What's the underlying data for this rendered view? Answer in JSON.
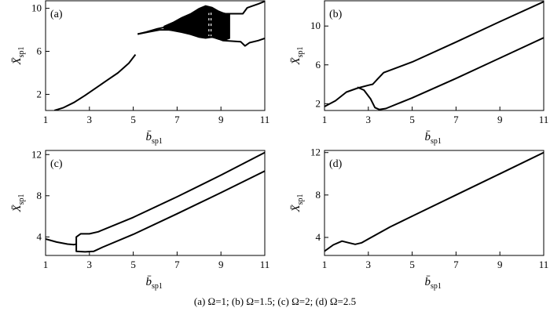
{
  "caption": "(a) Ω=1; (b) Ω=1.5; (c) Ω=2; (d) Ω=2.5",
  "chart_data": [
    {
      "type": "line",
      "panel_label": "(a)",
      "xlabel": "b̄sp1",
      "ylabel": "X̄sp1",
      "xlim": [
        1,
        11
      ],
      "ylim": [
        0.5,
        10.7
      ],
      "xticks": [
        1,
        3,
        5,
        7,
        9,
        11
      ],
      "yticks": [
        2,
        6,
        10
      ],
      "series": [
        {
          "x": [
            1.4,
            1.8,
            2.3,
            2.8,
            3.3,
            3.8,
            4.3,
            4.8,
            5.1
          ],
          "y": [
            0.5,
            0.75,
            1.25,
            1.9,
            2.6,
            3.3,
            4.0,
            4.9,
            5.7
          ]
        },
        {
          "x": [
            5.2,
            5.6,
            6.1,
            6.6,
            7.1,
            7.6,
            8.1,
            8.6,
            9.2,
            9.6,
            10.0,
            10.2,
            10.4,
            10.7,
            11.0
          ],
          "y": [
            7.6,
            7.8,
            8.1,
            8.3,
            8.55,
            8.8,
            9.3,
            9.8,
            9.5,
            9.5,
            9.5,
            10.05,
            10.2,
            10.4,
            10.65
          ]
        },
        {
          "x": [
            5.2,
            5.7,
            6.2,
            6.7,
            7.2,
            7.7,
            8.2,
            8.7,
            9.1,
            9.5,
            9.9,
            10.1,
            10.3,
            10.7,
            11.0
          ],
          "y": [
            7.6,
            7.8,
            8.0,
            8.0,
            7.9,
            7.6,
            7.4,
            7.3,
            7.0,
            6.95,
            6.9,
            6.5,
            6.8,
            7.0,
            7.2
          ]
        }
      ],
      "chaotic_bands": [
        {
          "x": [
            6.4,
            6.8,
            7.2,
            7.6,
            8.0,
            8.3,
            8.6,
            8.9,
            9.2,
            9.4
          ],
          "ytop": [
            8.35,
            8.7,
            9.15,
            9.5,
            10.0,
            10.25,
            10.1,
            9.75,
            9.5,
            9.4
          ],
          "ybot": [
            8.05,
            7.9,
            7.75,
            7.55,
            7.3,
            7.2,
            7.3,
            7.1,
            7.05,
            7.2
          ]
        }
      ]
    },
    {
      "type": "line",
      "panel_label": "(b)",
      "xlabel": "b̄sp1",
      "ylabel": "X̄sp1",
      "xlim": [
        1,
        11
      ],
      "ylim": [
        1.3,
        12.6
      ],
      "xticks": [
        1,
        3,
        5,
        7,
        9,
        11
      ],
      "yticks": [
        2,
        6,
        10
      ],
      "series": [
        {
          "x": [
            1.0,
            1.5,
            2.0,
            2.5,
            3.0,
            3.2,
            3.4,
            3.7,
            5.0,
            7.0,
            9.0,
            11.0
          ],
          "y": [
            1.7,
            2.3,
            3.2,
            3.6,
            3.9,
            4.0,
            4.5,
            5.2,
            6.3,
            8.35,
            10.45,
            12.5
          ]
        },
        {
          "x": [
            2.5,
            2.8,
            3.1,
            3.3,
            3.5,
            3.8,
            5.0,
            7.0,
            9.0,
            11.0
          ],
          "y": [
            3.7,
            3.4,
            2.5,
            1.6,
            1.4,
            1.5,
            2.6,
            4.6,
            6.7,
            8.8
          ]
        }
      ]
    },
    {
      "type": "line",
      "panel_label": "(c)",
      "xlabel": "b̄sp1",
      "ylabel": "X̄sp1",
      "xlim": [
        1,
        11
      ],
      "ylim": [
        2.2,
        12.4
      ],
      "xticks": [
        1,
        3,
        5,
        7,
        9,
        11
      ],
      "yticks": [
        4,
        8,
        12
      ],
      "series": [
        {
          "x": [
            1.0,
            1.5,
            2.0,
            2.3,
            2.4,
            2.4,
            2.6,
            3.0,
            3.4,
            5.0,
            7.0,
            9.0,
            11.0
          ],
          "y": [
            3.8,
            3.5,
            3.3,
            3.25,
            3.3,
            4.0,
            4.3,
            4.3,
            4.5,
            5.9,
            7.9,
            10.0,
            12.2
          ]
        },
        {
          "x": [
            2.4,
            2.4,
            2.8,
            3.2,
            3.6,
            5.0,
            7.0,
            9.0,
            11.0
          ],
          "y": [
            3.3,
            2.6,
            2.55,
            2.6,
            3.0,
            4.25,
            6.25,
            8.3,
            10.4
          ]
        }
      ]
    },
    {
      "type": "line",
      "panel_label": "(d)",
      "xlabel": "b̄sp1",
      "ylabel": "X̄sp1",
      "xlim": [
        1,
        11
      ],
      "ylim": [
        2.3,
        12.2
      ],
      "xticks": [
        1,
        3,
        5,
        7,
        9,
        11
      ],
      "yticks": [
        4,
        8,
        12
      ],
      "series": [
        {
          "x": [
            1.0,
            1.4,
            1.8,
            2.1,
            2.4,
            2.7,
            3.0,
            4.0,
            5.0,
            7.0,
            9.0,
            11.0
          ],
          "y": [
            2.7,
            3.3,
            3.65,
            3.5,
            3.35,
            3.5,
            3.85,
            5.0,
            6.0,
            8.0,
            10.0,
            12.0
          ]
        }
      ]
    }
  ]
}
